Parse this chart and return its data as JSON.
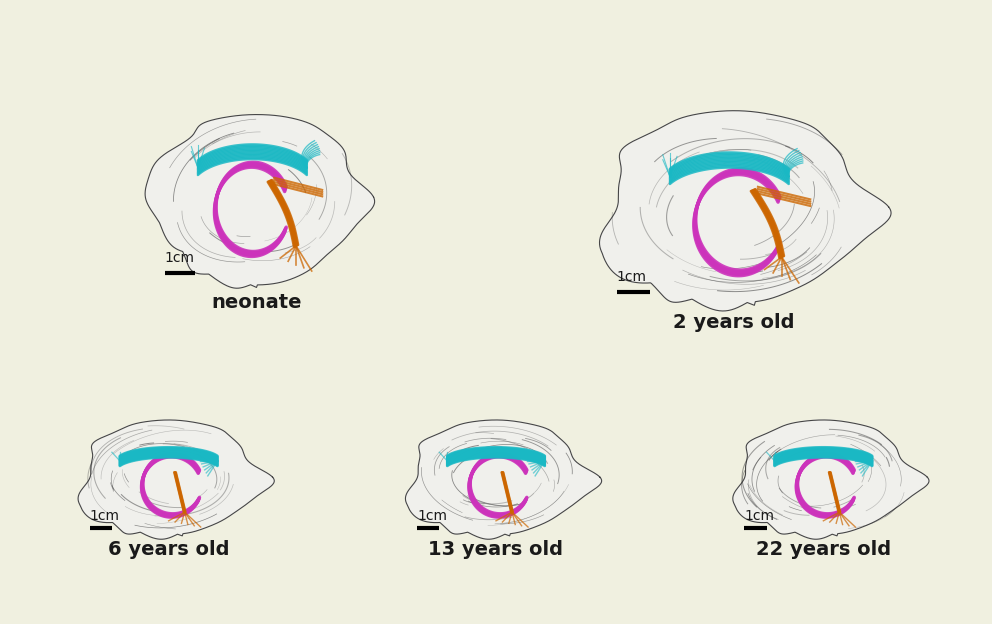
{
  "background_color": "#f0f0e0",
  "text_color": "#1a1a1a",
  "labels": [
    "neonate",
    "2 years old",
    "6 years old",
    "13 years old",
    "22 years old"
  ],
  "scale_bar_label": "1cm",
  "teal": "#1ab8c4",
  "magenta": "#cc33bb",
  "orange": "#cc6600",
  "fig_width": 9.92,
  "fig_height": 6.24,
  "label_fontsize": 14,
  "scale_fontsize": 10,
  "brain_line_color": "#555555",
  "brain_fill_color": "#e0e0e0"
}
